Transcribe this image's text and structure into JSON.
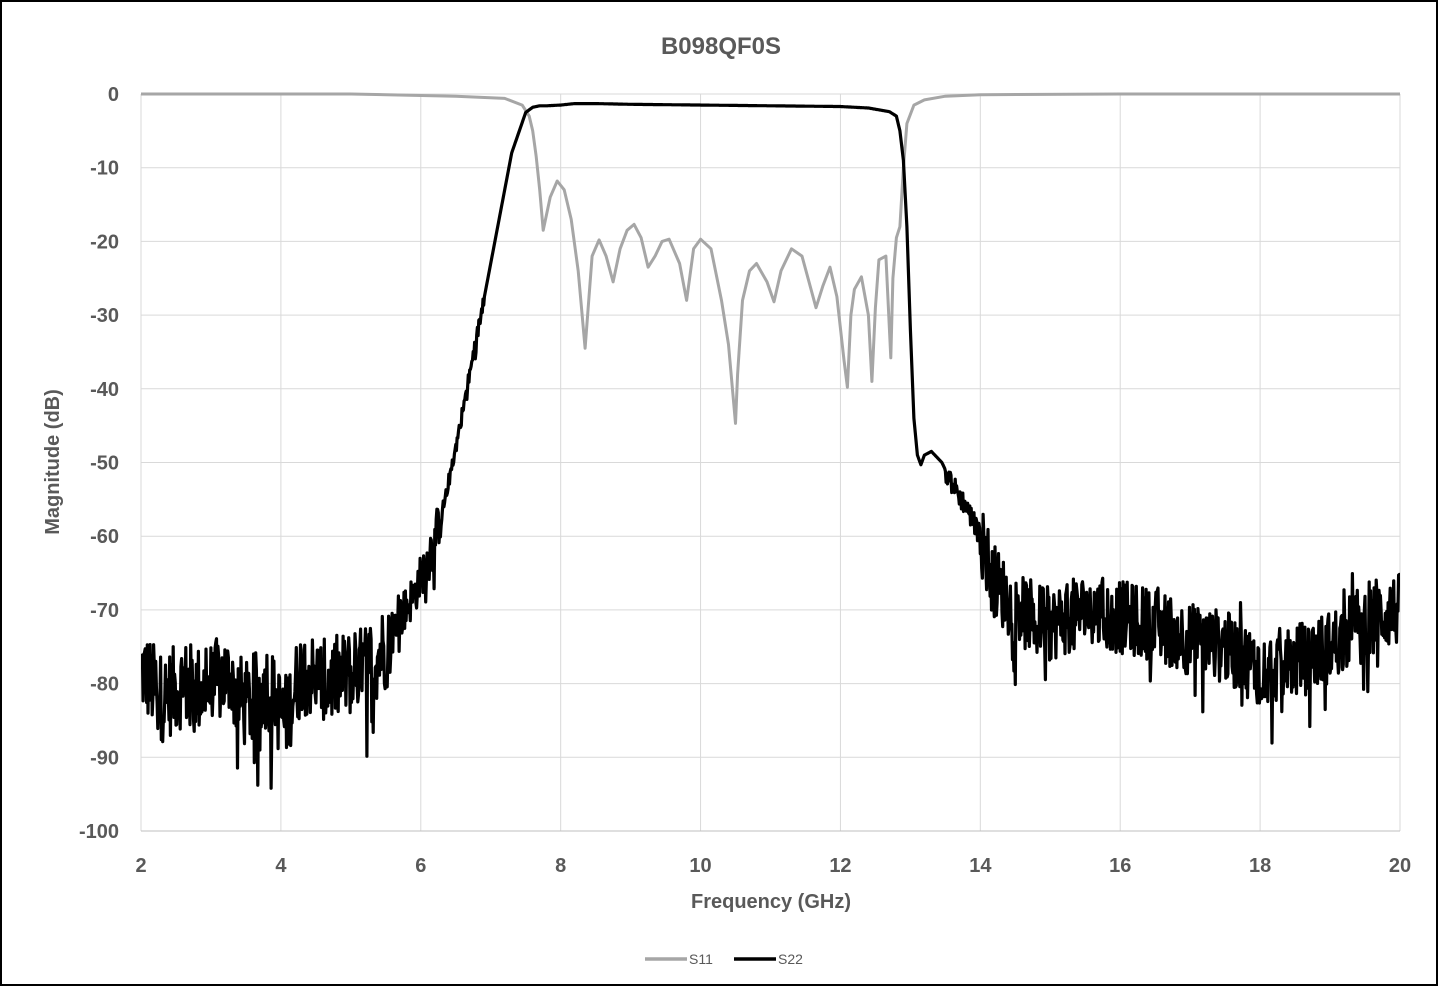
{
  "chart_data": {
    "type": "line",
    "title": "B098QF0S",
    "xlabel": "Frequency (GHz)",
    "ylabel": "Magnitude (dB)",
    "xlim": [
      2,
      20
    ],
    "ylim": [
      -100,
      0
    ],
    "xticks": [
      "2",
      "4",
      "6",
      "8",
      "10",
      "12",
      "14",
      "16",
      "18",
      "20"
    ],
    "yticks": [
      "0",
      "-10",
      "-20",
      "-30",
      "-40",
      "-50",
      "-60",
      "-70",
      "-80",
      "-90",
      "-100"
    ],
    "grid": true,
    "legend_position": "bottom",
    "series": [
      {
        "name": "S11",
        "color": "#a6a6a6",
        "x": [
          2,
          5,
          6.5,
          7.2,
          7.45,
          7.55,
          7.6,
          7.65,
          7.7,
          7.75,
          7.85,
          7.95,
          8.05,
          8.15,
          8.25,
          8.35,
          8.45,
          8.55,
          8.65,
          8.75,
          8.85,
          8.95,
          9.05,
          9.15,
          9.25,
          9.35,
          9.45,
          9.55,
          9.7,
          9.8,
          9.9,
          10.0,
          10.15,
          10.3,
          10.4,
          10.5,
          10.53,
          10.6,
          10.7,
          10.8,
          10.95,
          11.05,
          11.15,
          11.3,
          11.45,
          11.55,
          11.65,
          11.75,
          11.85,
          11.95,
          12.05,
          12.1,
          12.15,
          12.2,
          12.3,
          12.4,
          12.45,
          12.5,
          12.55,
          12.65,
          12.72,
          12.75,
          12.8,
          12.85,
          12.9,
          12.95,
          13.05,
          13.2,
          13.5,
          14,
          16,
          18,
          20
        ],
        "y": [
          0,
          0,
          -0.3,
          -0.6,
          -1.5,
          -3,
          -5,
          -8.5,
          -13,
          -18.5,
          -14,
          -11.8,
          -13,
          -17,
          -24,
          -34.5,
          -22,
          -19.8,
          -22,
          -25.5,
          -21,
          -18.5,
          -17.7,
          -19.5,
          -23.5,
          -22,
          -20,
          -19.7,
          -23,
          -28,
          -21,
          -19.7,
          -21,
          -28,
          -34,
          -44.7,
          -38,
          -28,
          -24,
          -23,
          -25.5,
          -28.2,
          -24,
          -21,
          -22,
          -25.5,
          -29,
          -26,
          -23.5,
          -27.5,
          -36,
          -39.8,
          -30,
          -26.5,
          -24.8,
          -30,
          -39,
          -29,
          -22.5,
          -22,
          -35.8,
          -25,
          -19.5,
          -18,
          -10,
          -4,
          -1.5,
          -0.8,
          -0.3,
          -0.1,
          0,
          0,
          0
        ]
      },
      {
        "name": "S22",
        "color": "#000000",
        "x": [
          2,
          2.3,
          2.6,
          2.9,
          3.2,
          3.5,
          3.8,
          4.05,
          4.3,
          4.6,
          4.9,
          5.2,
          5.5,
          5.7,
          5.9,
          6.1,
          6.3,
          6.5,
          6.7,
          6.9,
          7.1,
          7.3,
          7.5,
          7.6,
          7.7,
          7.8,
          8.0,
          8.2,
          8.5,
          9.0,
          10.0,
          11.0,
          12.0,
          12.4,
          12.7,
          12.8,
          12.85,
          12.9,
          12.95,
          13.0,
          13.05,
          13.1,
          13.15,
          13.2,
          13.3,
          13.45,
          13.6,
          13.8,
          14.0,
          14.2,
          14.5,
          15.0,
          15.5,
          16.0,
          16.5,
          17.0,
          17.5,
          18.0,
          18.5,
          19.0,
          19.5,
          20.0
        ],
        "y": [
          -78,
          -82,
          -80,
          -81,
          -79,
          -83,
          -80,
          -85,
          -78,
          -80,
          -79,
          -78,
          -75,
          -71,
          -68,
          -63,
          -57,
          -48,
          -38,
          -28,
          -18,
          -8,
          -2.5,
          -1.8,
          -1.6,
          -1.6,
          -1.5,
          -1.3,
          -1.3,
          -1.4,
          -1.5,
          -1.6,
          -1.7,
          -1.9,
          -2.4,
          -3,
          -5,
          -9,
          -18,
          -32,
          -44,
          -49,
          -50.3,
          -49,
          -48.5,
          -50,
          -53,
          -56,
          -60,
          -66,
          -70,
          -72,
          -70,
          -71,
          -72,
          -74,
          -75,
          -78,
          -77,
          -75,
          -71,
          -70
        ],
        "noise": [
          {
            "from": 2,
            "to": 5.6,
            "amplitude": 6
          },
          {
            "from": 5.6,
            "to": 6.3,
            "amplitude": 3
          },
          {
            "from": 6.3,
            "to": 6.9,
            "amplitude": 1
          },
          {
            "from": 13.5,
            "to": 14.0,
            "amplitude": 1.5
          },
          {
            "from": 14.0,
            "to": 20,
            "amplitude": 5
          }
        ]
      }
    ]
  }
}
